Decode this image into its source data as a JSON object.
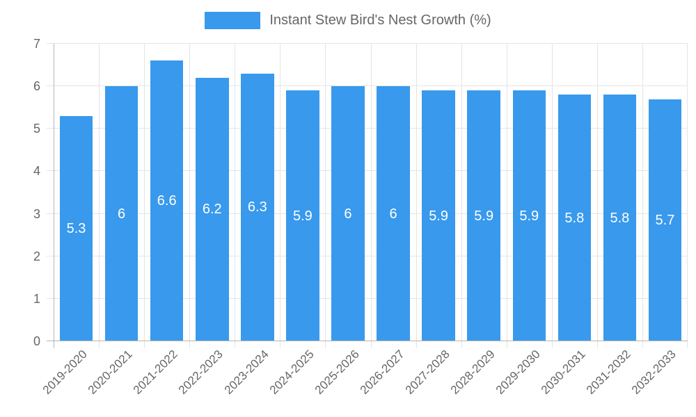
{
  "legend": {
    "label": "Instant Stew Bird's Nest Growth (%)"
  },
  "colors": {
    "bar": "#3999EC",
    "grid": "#E4E4E4",
    "axis": "#B5B5B5",
    "text": "#666666",
    "value_text": "#FFFFFF",
    "background": "#FFFFFF"
  },
  "chart_data": {
    "type": "bar",
    "title": "Instant Stew Bird's Nest Growth (%)",
    "categories": [
      "2019-2020",
      "2020-2021",
      "2021-2022",
      "2022-2023",
      "2023-2024",
      "2024-2025",
      "2025-2026",
      "2026-2027",
      "2027-2028",
      "2028-2029",
      "2029-2030",
      "2030-2031",
      "2031-2032",
      "2032-2033"
    ],
    "values": [
      5.3,
      6,
      6.6,
      6.2,
      6.3,
      5.9,
      6,
      6,
      5.9,
      5.9,
      5.9,
      5.8,
      5.8,
      5.7
    ],
    "value_labels": [
      "5.3",
      "6",
      "6.6",
      "6.2",
      "6.3",
      "5.9",
      "6",
      "6",
      "5.9",
      "5.9",
      "5.9",
      "5.8",
      "5.8",
      "5.7"
    ],
    "xlabel": "",
    "ylabel": "",
    "ylim": [
      0,
      7
    ],
    "yticks": [
      0,
      1,
      2,
      3,
      4,
      5,
      6,
      7
    ],
    "grid": true,
    "legend_position": "top",
    "value_label_position": "center-of-bar"
  }
}
